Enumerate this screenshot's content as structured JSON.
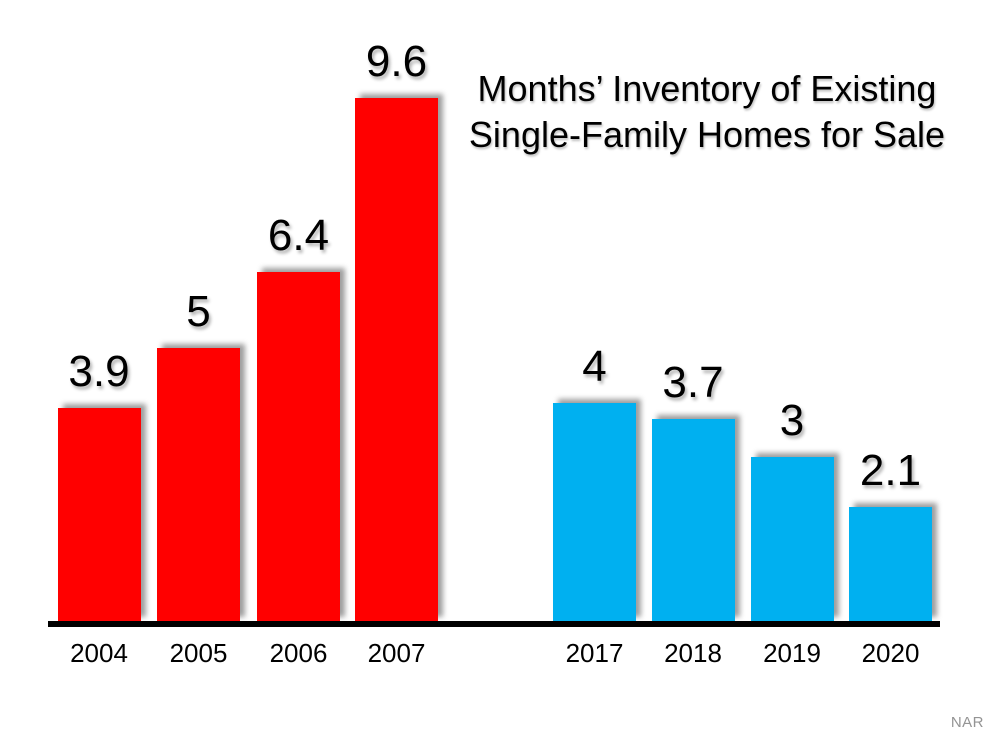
{
  "title": {
    "line1": "Months’ Inventory of Existing",
    "line2": "Single-Family Homes for Sale"
  },
  "source_label": "NAR",
  "colors": {
    "bar_red": "#FF0000",
    "bar_blue": "#00B0F0",
    "axis": "#000000",
    "title_text": "#000000",
    "source_text": "#949494"
  },
  "chart_data": {
    "type": "bar",
    "title": "Months’ Inventory of Existing Single-Family Homes for Sale",
    "xlabel": "",
    "ylabel": "",
    "ylim": [
      0,
      10
    ],
    "grid": false,
    "legend": "none",
    "source": "NAR",
    "series": [
      {
        "name": "2004-2007",
        "color": "#FF0000",
        "categories": [
          "2004",
          "2005",
          "2006",
          "2007"
        ],
        "values": [
          3.9,
          5,
          6.4,
          9.6
        ],
        "value_labels": [
          "3.9",
          "5",
          "6.4",
          "9.6"
        ]
      },
      {
        "name": "2017-2020",
        "color": "#00B0F0",
        "categories": [
          "2017",
          "2018",
          "2019",
          "2020"
        ],
        "values": [
          4,
          3.7,
          3,
          2.1
        ],
        "value_labels": [
          "4",
          "3.7",
          "3",
          "2.1"
        ]
      }
    ]
  }
}
